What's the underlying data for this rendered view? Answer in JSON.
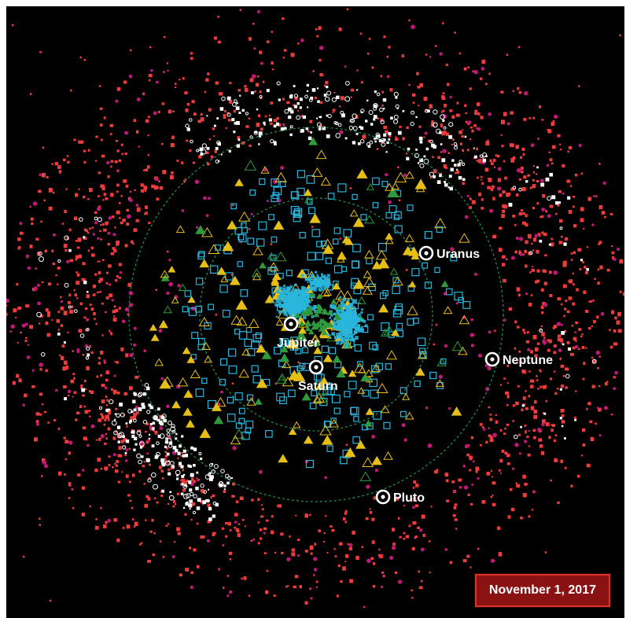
{
  "diagram": {
    "background": "#000000",
    "colors": {
      "red": "#ee3b3b",
      "white": "#ffffff",
      "magenta": "#c01878",
      "cyan": "#29b6dd",
      "yellow": "#e6bf16",
      "green": "#2e9a3c",
      "orbit": "#1c8a4c"
    },
    "planets": [
      {
        "name": "Jupiter",
        "icon": "planet-marker-icon"
      },
      {
        "name": "Saturn",
        "icon": "planet-marker-icon"
      },
      {
        "name": "Uranus",
        "icon": "planet-marker-icon"
      },
      {
        "name": "Neptune",
        "icon": "planet-marker-icon"
      },
      {
        "name": "Pluto",
        "icon": "planet-marker-icon"
      }
    ],
    "date_label": "November 1, 2017"
  }
}
